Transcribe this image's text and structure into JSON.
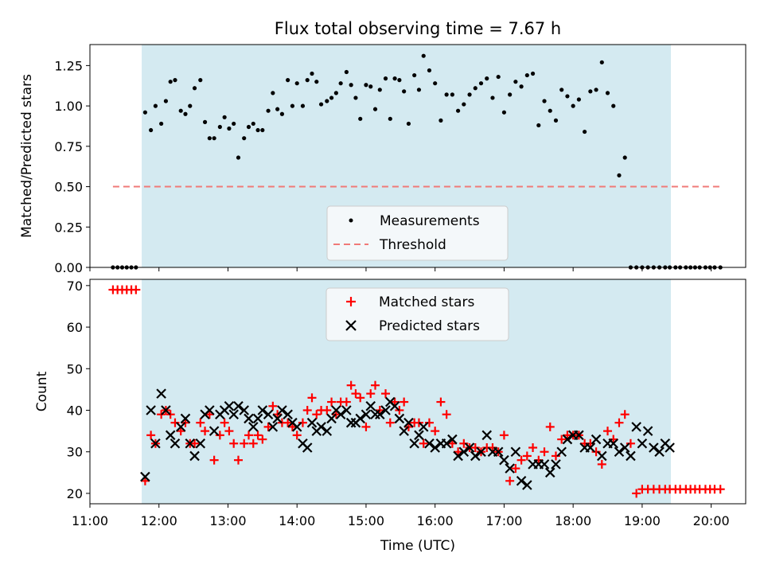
{
  "chart_data": [
    {
      "type": "scatter",
      "title": "Flux total observing time = 7.67 h",
      "ylabel": "Matched/Predicted stars",
      "xlabel": "",
      "xlim": [
        "11:00",
        "20:30"
      ],
      "ylim": [
        0,
        1.38
      ],
      "yticks": [
        "0.00",
        "0.25",
        "0.50",
        "0.75",
        "1.00",
        "1.25"
      ],
      "shaded_region": {
        "x0": "11:45",
        "x1": "19:25",
        "color": "#d4eaf1"
      },
      "threshold": {
        "name": "Threshold",
        "y": 0.5,
        "x0": "11:20",
        "x1": "20:08",
        "color": "#f07a78",
        "style": "dashed"
      },
      "legend": {
        "placement": "bottom-center",
        "entries": [
          "Measurements",
          "Threshold"
        ]
      },
      "series": [
        {
          "name": "Measurements",
          "marker": "dot",
          "color": "#000000",
          "x": [
            "11:20",
            "11:24",
            "11:28",
            "11:32",
            "11:36",
            "11:40",
            "11:48",
            "11:53",
            "11:57",
            "12:02",
            "12:06",
            "12:10",
            "12:14",
            "12:19",
            "12:23",
            "12:27",
            "12:31",
            "12:36",
            "12:40",
            "12:44",
            "12:48",
            "12:53",
            "12:57",
            "13:01",
            "13:05",
            "13:09",
            "13:14",
            "13:18",
            "13:22",
            "13:26",
            "13:30",
            "13:35",
            "13:39",
            "13:43",
            "13:47",
            "13:52",
            "13:56",
            "14:00",
            "14:05",
            "14:09",
            "14:13",
            "14:17",
            "14:21",
            "14:26",
            "14:30",
            "14:34",
            "14:38",
            "14:43",
            "14:47",
            "14:51",
            "14:55",
            "15:00",
            "15:04",
            "15:08",
            "15:12",
            "15:17",
            "15:21",
            "15:25",
            "15:29",
            "15:33",
            "15:37",
            "15:42",
            "15:46",
            "15:50",
            "15:55",
            "16:00",
            "16:05",
            "16:10",
            "16:15",
            "16:20",
            "16:25",
            "16:30",
            "16:35",
            "16:40",
            "16:45",
            "16:50",
            "16:55",
            "17:00",
            "17:05",
            "17:10",
            "17:15",
            "17:20",
            "17:25",
            "17:30",
            "17:35",
            "17:40",
            "17:45",
            "17:50",
            "17:55",
            "18:00",
            "18:05",
            "18:10",
            "18:15",
            "18:20",
            "18:25",
            "18:30",
            "18:35",
            "18:40",
            "18:45",
            "18:50",
            "18:55",
            "19:00",
            "19:05",
            "19:10",
            "19:15",
            "19:20",
            "19:24",
            "19:29",
            "19:33",
            "19:38",
            "19:42",
            "19:46",
            "19:50",
            "19:55",
            "19:59",
            "20:03",
            "20:08"
          ],
          "y": [
            0,
            0,
            0,
            0,
            0,
            0,
            0.96,
            0.85,
            1.0,
            0.89,
            1.03,
            1.15,
            1.16,
            0.97,
            0.95,
            1.0,
            1.11,
            1.16,
            0.9,
            0.8,
            0.8,
            0.87,
            0.93,
            0.86,
            0.89,
            0.68,
            0.8,
            0.87,
            0.89,
            0.85,
            0.85,
            0.97,
            1.08,
            0.98,
            0.95,
            1.16,
            1.0,
            1.14,
            1.0,
            1.16,
            1.2,
            1.15,
            1.01,
            1.03,
            1.05,
            1.08,
            1.14,
            1.21,
            1.13,
            1.05,
            0.92,
            1.13,
            1.12,
            0.98,
            1.1,
            1.17,
            0.92,
            1.17,
            1.16,
            1.09,
            0.89,
            1.19,
            1.1,
            1.31,
            1.22,
            1.14,
            0.91,
            1.07,
            1.07,
            0.97,
            1.01,
            1.07,
            1.11,
            1.14,
            1.17,
            1.05,
            1.18,
            0.96,
            1.07,
            1.15,
            1.12,
            1.19,
            1.2,
            0.88,
            1.03,
            0.97,
            0.91,
            1.1,
            1.06,
            1.0,
            1.04,
            0.84,
            1.09,
            1.1,
            1.27,
            1.08,
            1.0,
            0.57,
            0.68,
            0,
            0,
            0,
            0,
            0,
            0,
            0,
            0,
            0,
            0,
            0,
            0,
            0,
            0,
            0,
            0,
            0,
            0
          ]
        }
      ]
    },
    {
      "type": "scatter",
      "title": "",
      "xlabel": "Time (UTC)",
      "ylabel": "Count",
      "xlim": [
        "11:00",
        "20:30"
      ],
      "ylim": [
        17.5,
        71.5
      ],
      "xticks": [
        "11:00",
        "12:00",
        "13:00",
        "14:00",
        "15:00",
        "16:00",
        "17:00",
        "18:00",
        "19:00",
        "20:00"
      ],
      "yticks": [
        "20",
        "30",
        "40",
        "50",
        "60",
        "70"
      ],
      "shaded_region": {
        "x0": "11:45",
        "x1": "19:25",
        "color": "#d4eaf1"
      },
      "legend": {
        "placement": "top-center",
        "entries": [
          "Matched stars",
          "Predicted stars"
        ]
      },
      "series": [
        {
          "name": "Matched stars",
          "marker": "plus",
          "color": "#ff0000",
          "x": [
            "11:20",
            "11:24",
            "11:28",
            "11:32",
            "11:36",
            "11:40",
            "11:48",
            "11:53",
            "11:57",
            "12:02",
            "12:06",
            "12:10",
            "12:14",
            "12:19",
            "12:23",
            "12:27",
            "12:31",
            "12:36",
            "12:40",
            "12:44",
            "12:48",
            "12:53",
            "12:57",
            "13:01",
            "13:05",
            "13:09",
            "13:14",
            "13:18",
            "13:22",
            "13:26",
            "13:30",
            "13:35",
            "13:39",
            "13:43",
            "13:47",
            "13:52",
            "13:56",
            "14:00",
            "14:05",
            "14:09",
            "14:13",
            "14:17",
            "14:21",
            "14:26",
            "14:30",
            "14:34",
            "14:38",
            "14:43",
            "14:47",
            "14:51",
            "14:55",
            "15:00",
            "15:04",
            "15:08",
            "15:12",
            "15:17",
            "15:21",
            "15:25",
            "15:29",
            "15:33",
            "15:37",
            "15:42",
            "15:46",
            "15:50",
            "15:55",
            "16:00",
            "16:05",
            "16:10",
            "16:15",
            "16:20",
            "16:25",
            "16:30",
            "16:35",
            "16:40",
            "16:45",
            "16:50",
            "16:55",
            "17:00",
            "17:05",
            "17:10",
            "17:15",
            "17:20",
            "17:25",
            "17:30",
            "17:35",
            "17:40",
            "17:45",
            "17:50",
            "17:55",
            "18:00",
            "18:05",
            "18:10",
            "18:15",
            "18:20",
            "18:25",
            "18:30",
            "18:35",
            "18:40",
            "18:45",
            "18:50",
            "18:55",
            "19:00",
            "19:05",
            "19:10",
            "19:15",
            "19:20",
            "19:24",
            "19:29",
            "19:33",
            "19:38",
            "19:42",
            "19:46",
            "19:50",
            "19:55",
            "19:59",
            "20:03",
            "20:08"
          ],
          "y": [
            69,
            69,
            69,
            69,
            69,
            69,
            23,
            34,
            32,
            39,
            40,
            39,
            37,
            35,
            37,
            32,
            32,
            37,
            35,
            39,
            28,
            34,
            37,
            35,
            32,
            28,
            32,
            34,
            32,
            34,
            33,
            36,
            41,
            39,
            37,
            37,
            36,
            34,
            37,
            40,
            43,
            39,
            40,
            40,
            42,
            39,
            42,
            42,
            46,
            44,
            43,
            36,
            44,
            46,
            40,
            44,
            37,
            42,
            40,
            42,
            36,
            37,
            37,
            32,
            37,
            35,
            42,
            39,
            32,
            30,
            32,
            31,
            31,
            30,
            31,
            31,
            30,
            34,
            23,
            26,
            28,
            29,
            31,
            28,
            30,
            36,
            29,
            33,
            34,
            34,
            34,
            32,
            32,
            30,
            27,
            35,
            33,
            37,
            39,
            32,
            20,
            21,
            21,
            21,
            21,
            21,
            21,
            21,
            21,
            21,
            21,
            21,
            21,
            21,
            21,
            21,
            21
          ]
        },
        {
          "name": "Predicted stars",
          "marker": "x",
          "color": "#000000",
          "x": [
            "11:48",
            "11:53",
            "11:57",
            "12:02",
            "12:06",
            "12:10",
            "12:14",
            "12:19",
            "12:23",
            "12:27",
            "12:31",
            "12:36",
            "12:40",
            "12:44",
            "12:48",
            "12:53",
            "12:57",
            "13:01",
            "13:05",
            "13:09",
            "13:14",
            "13:18",
            "13:22",
            "13:26",
            "13:30",
            "13:35",
            "13:39",
            "13:43",
            "13:47",
            "13:52",
            "13:56",
            "14:00",
            "14:05",
            "14:09",
            "14:13",
            "14:17",
            "14:21",
            "14:26",
            "14:30",
            "14:34",
            "14:38",
            "14:43",
            "14:47",
            "14:51",
            "14:55",
            "15:00",
            "15:04",
            "15:08",
            "15:12",
            "15:17",
            "15:21",
            "15:25",
            "15:29",
            "15:33",
            "15:37",
            "15:42",
            "15:46",
            "15:50",
            "15:55",
            "16:00",
            "16:05",
            "16:10",
            "16:15",
            "16:20",
            "16:25",
            "16:30",
            "16:35",
            "16:40",
            "16:45",
            "16:50",
            "16:55",
            "17:00",
            "17:05",
            "17:10",
            "17:15",
            "17:20",
            "17:25",
            "17:30",
            "17:35",
            "17:40",
            "17:45",
            "17:50",
            "17:55",
            "18:00",
            "18:05",
            "18:10",
            "18:15",
            "18:20",
            "18:25",
            "18:30",
            "18:35",
            "18:40",
            "18:45",
            "18:50",
            "18:55",
            "19:00",
            "19:05",
            "19:10",
            "19:15",
            "19:20",
            "19:24"
          ],
          "y": [
            24,
            40,
            32,
            44,
            40,
            34,
            32,
            36,
            38,
            32,
            29,
            32,
            39,
            40,
            35,
            39,
            40,
            41,
            39,
            41,
            40,
            38,
            36,
            38,
            40,
            39,
            36,
            38,
            40,
            39,
            37,
            36,
            32,
            31,
            37,
            35,
            36,
            35,
            38,
            40,
            39,
            40,
            37,
            37,
            38,
            39,
            41,
            39,
            39,
            40,
            42,
            41,
            38,
            35,
            37,
            32,
            34,
            36,
            32,
            31,
            32,
            32,
            33,
            29,
            30,
            31,
            29,
            30,
            34,
            30,
            30,
            28,
            26,
            30,
            23,
            22,
            27,
            27,
            27,
            25,
            27,
            30,
            33,
            34,
            34,
            31,
            31,
            33,
            29,
            32,
            32,
            30,
            31,
            29,
            36,
            32,
            35,
            31,
            30,
            32,
            31
          ]
        }
      ]
    }
  ]
}
